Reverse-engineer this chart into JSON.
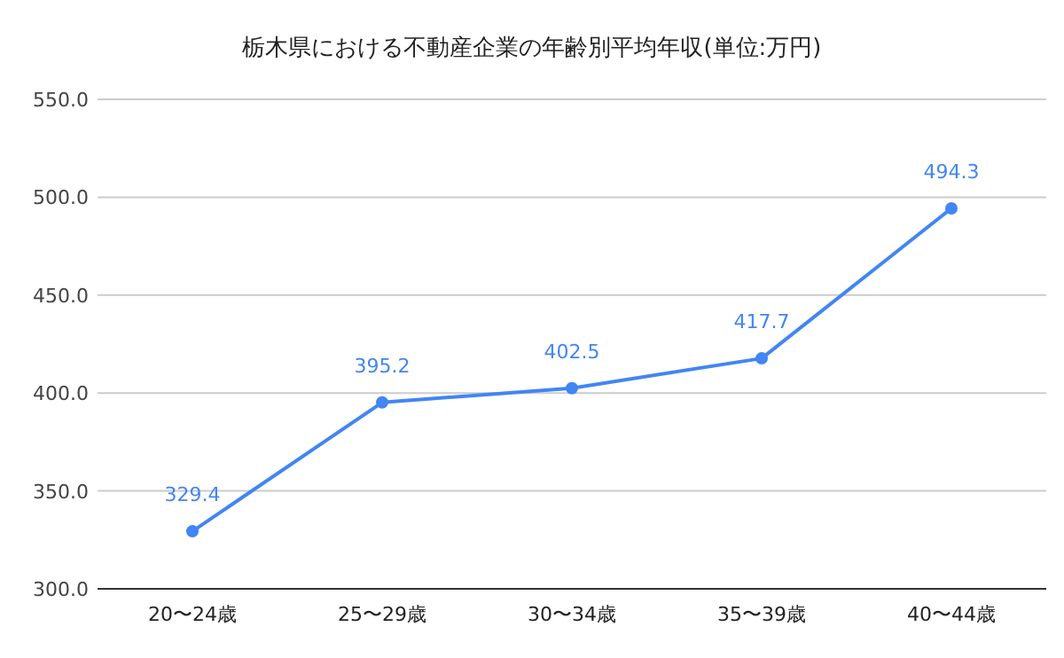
{
  "chart_data": {
    "type": "line",
    "title": "栃木県における不動産企業の年齢別平均年収(単位:万円)",
    "categories": [
      "20〜24歳",
      "25〜29歳",
      "30〜34歳",
      "35〜39歳",
      "40〜44歳"
    ],
    "series": [
      {
        "color": "#4285f4",
        "values": [
          329.4,
          395.2,
          402.5,
          417.7,
          494.3
        ]
      }
    ],
    "ylim": [
      300,
      550
    ],
    "yticks": [
      {
        "value": 300,
        "label": "300.0"
      },
      {
        "value": 350,
        "label": "350.0"
      },
      {
        "value": 400,
        "label": "400.0"
      },
      {
        "value": 450,
        "label": "450.0"
      },
      {
        "value": 500,
        "label": "500.0"
      },
      {
        "value": 550,
        "label": "550.0"
      }
    ],
    "grid": "y",
    "marker": "circle",
    "data_labels": true
  }
}
